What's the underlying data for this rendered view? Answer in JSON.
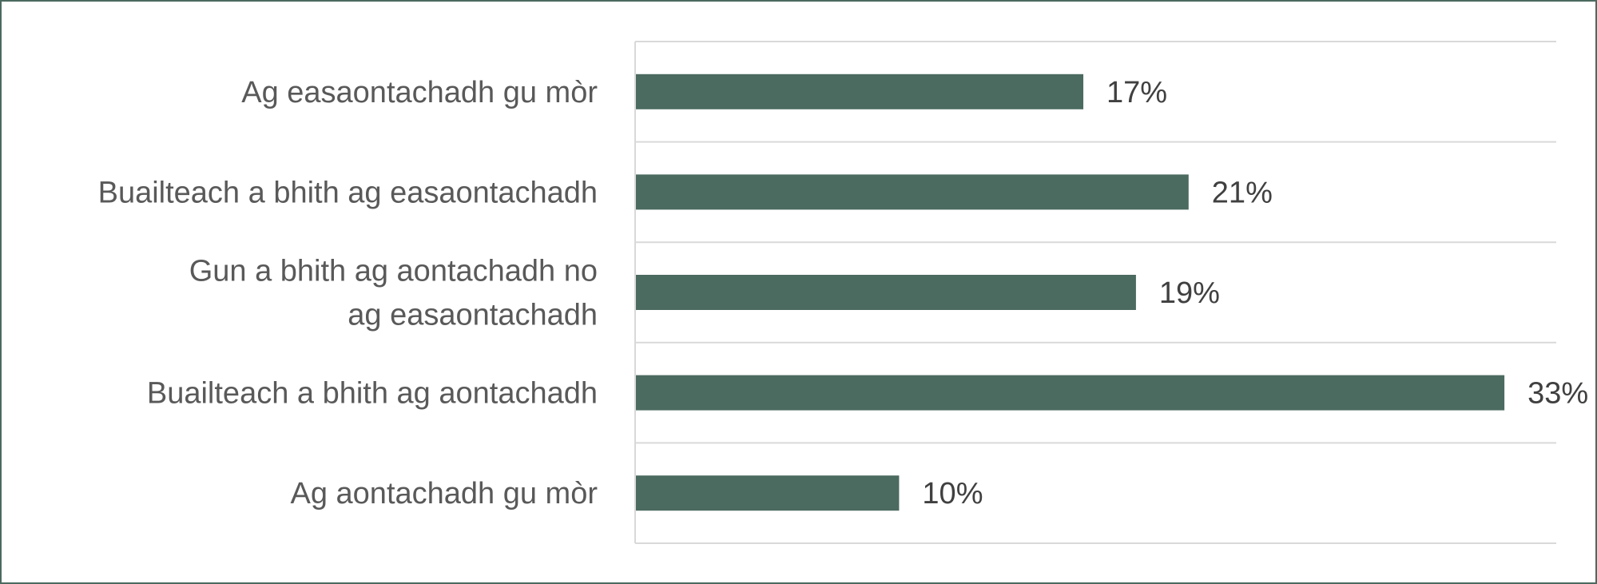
{
  "chart_data": {
    "type": "bar",
    "orientation": "horizontal",
    "categories": [
      "Ag easaontachadh gu mòr",
      "Buailteach a bhith ag easaontachadh",
      "Gun a bhith ag aontachadh no ag easaontachadh",
      "Buailteach a bhith ag aontachadh",
      "Ag aontachadh gu mòr"
    ],
    "values": [
      17,
      21,
      19,
      33,
      10
    ],
    "data_labels": [
      "17%",
      "21%",
      "19%",
      "33%",
      "10%"
    ],
    "xlim": [
      0,
      35
    ],
    "grid": true,
    "legend": "none",
    "title": "",
    "xlabel": "",
    "ylabel": ""
  },
  "colors": {
    "bar": "#4b6a60",
    "grid": "#d9d9d9",
    "border": "#4b6a60"
  }
}
